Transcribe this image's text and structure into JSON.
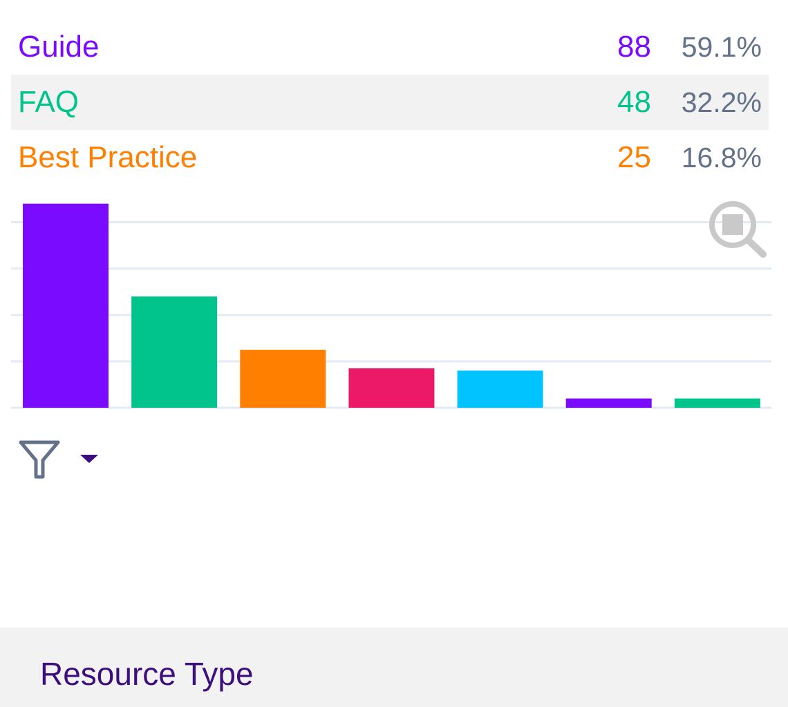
{
  "legend": {
    "items": [
      {
        "label": "Guide",
        "count": "88",
        "percent": "59.1%",
        "color": "#7b0bff"
      },
      {
        "label": "FAQ",
        "count": "48",
        "percent": "32.2%",
        "color": "#00c48c"
      },
      {
        "label": "Best Practice",
        "count": "25",
        "percent": "16.8%",
        "color": "#ff7f00"
      }
    ],
    "highlighted_index": 1
  },
  "chart_data": {
    "type": "bar",
    "categories": [
      "Guide",
      "FAQ",
      "Best Practice",
      "",
      "",
      "",
      ""
    ],
    "values": [
      88,
      48,
      25,
      17,
      16,
      4,
      4
    ],
    "colors": [
      "#7b0bff",
      "#00c48c",
      "#ff7f00",
      "#ec1968",
      "#00c3ff",
      "#7b0bff",
      "#00c48c"
    ],
    "ylim": [
      0,
      90
    ],
    "grid": true,
    "gridlines": [
      0,
      20,
      40,
      60,
      80
    ],
    "title": "",
    "xlabel": "",
    "ylabel": ""
  },
  "toolbar": {
    "zoom_icon": "zoom-icon",
    "filter_icon": "filter-icon",
    "dropdown_icon": "caret-down-icon",
    "icon_color": "#63728a",
    "zoom_icon_color": "#c9c9c9",
    "caret_color": "#3d0f7d"
  },
  "footer": {
    "title": "Resource Type"
  }
}
